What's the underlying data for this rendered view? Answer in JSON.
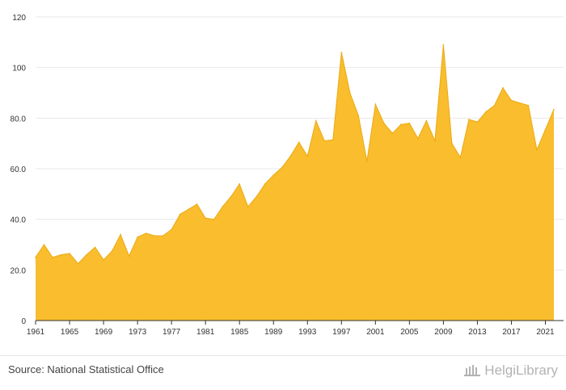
{
  "chart_data": {
    "type": "area",
    "title": "",
    "xlabel": "",
    "ylabel": "",
    "x": [
      1961,
      1962,
      1963,
      1964,
      1965,
      1966,
      1967,
      1968,
      1969,
      1970,
      1971,
      1972,
      1973,
      1974,
      1975,
      1976,
      1977,
      1978,
      1979,
      1980,
      1981,
      1982,
      1983,
      1984,
      1985,
      1986,
      1987,
      1988,
      1989,
      1990,
      1991,
      1992,
      1993,
      1994,
      1995,
      1996,
      1997,
      1998,
      1999,
      2000,
      2001,
      2002,
      2003,
      2004,
      2005,
      2006,
      2007,
      2008,
      2009,
      2010,
      2011,
      2012,
      2013,
      2014,
      2015,
      2016,
      2017,
      2018,
      2019,
      2020,
      2021,
      2022
    ],
    "values": [
      25.0,
      30.0,
      25.0,
      26.0,
      26.5,
      22.5,
      26.0,
      29.0,
      24.0,
      27.5,
      34.0,
      25.5,
      33.0,
      34.5,
      33.5,
      33.5,
      36.0,
      42.0,
      44.0,
      46.0,
      40.5,
      40.0,
      45.0,
      49.0,
      54.0,
      45.0,
      49.0,
      54.0,
      57.5,
      60.5,
      65.0,
      70.5,
      65.0,
      79.0,
      71.0,
      71.5,
      106.0,
      90.0,
      81.0,
      63.0,
      85.5,
      78.0,
      74.0,
      77.5,
      78.0,
      72.0,
      79.0,
      71.0,
      109.0,
      70.0,
      64.5,
      79.5,
      78.5,
      82.5,
      85.0,
      92.0,
      87.0,
      86.0,
      85.0,
      67.5,
      75.5,
      83.5
    ],
    "x_ticks": [
      "1961",
      "1965",
      "1969",
      "1973",
      "1977",
      "1981",
      "1985",
      "1989",
      "1993",
      "1997",
      "2001",
      "2005",
      "2009",
      "2013",
      "2017",
      "2021"
    ],
    "y_ticks": [
      "0",
      "20.0",
      "40.0",
      "60.0",
      "80.0",
      "100",
      "120"
    ],
    "ylim": [
      0,
      120
    ],
    "grid": "horizontal",
    "legend": "none",
    "colors": {
      "fill": "#F9BD2E",
      "stroke": "#EBAA12",
      "grid": "#e9e9e9",
      "baseline": "#333333"
    }
  },
  "footer": {
    "source": "Source: National Statistical Office",
    "logo_text": "HelgiLibrary"
  }
}
